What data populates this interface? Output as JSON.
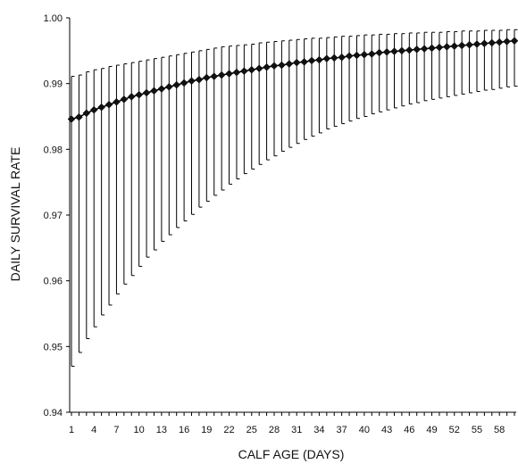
{
  "chart_data": {
    "type": "line",
    "xlabel": "CALF AGE (DAYS)",
    "ylabel": "DAILY SURVIVAL RATE",
    "xlim": [
      1,
      60
    ],
    "ylim": [
      0.94,
      1.0
    ],
    "x_ticks": [
      1,
      4,
      7,
      10,
      13,
      16,
      19,
      22,
      25,
      28,
      31,
      34,
      37,
      40,
      43,
      46,
      49,
      52,
      55,
      58
    ],
    "x_tick_labels": [
      "1",
      "4",
      "7",
      "10",
      "13",
      "16",
      "19",
      "22",
      "25",
      "28",
      "31",
      "34",
      "37",
      "40",
      "43",
      "46",
      "49",
      "52",
      "55",
      "58"
    ],
    "y_ticks": [
      0.94,
      0.95,
      0.96,
      0.97,
      0.98,
      0.99,
      1.0
    ],
    "y_tick_labels": [
      "0.94",
      "0.95",
      "0.96",
      "0.97",
      "0.98",
      "0.99",
      "1.00"
    ],
    "grid": false,
    "marker": "diamond",
    "series": [
      {
        "x": [
          1,
          2,
          3,
          4,
          5,
          6,
          7,
          8,
          9,
          10,
          11,
          12,
          13,
          14,
          15,
          16,
          17,
          18,
          19,
          20,
          21,
          22,
          23,
          24,
          25,
          26,
          27,
          28,
          29,
          30,
          31,
          32,
          33,
          34,
          35,
          36,
          37,
          38,
          39,
          40,
          41,
          42,
          43,
          44,
          45,
          46,
          47,
          48,
          49,
          50,
          51,
          52,
          53,
          54,
          55,
          56,
          57,
          58,
          59,
          60
        ],
        "y": [
          0.9846,
          0.9849,
          0.9855,
          0.986,
          0.9864,
          0.9868,
          0.9872,
          0.9876,
          0.988,
          0.9883,
          0.9886,
          0.9889,
          0.9892,
          0.9895,
          0.9898,
          0.9901,
          0.9904,
          0.9906,
          0.9909,
          0.9911,
          0.9913,
          0.9915,
          0.9917,
          0.9919,
          0.9921,
          0.9923,
          0.9925,
          0.9927,
          0.9928,
          0.993,
          0.9932,
          0.9933,
          0.9935,
          0.9936,
          0.9938,
          0.9939,
          0.994,
          0.9942,
          0.9943,
          0.9944,
          0.9945,
          0.9947,
          0.9948,
          0.9949,
          0.995,
          0.9951,
          0.9952,
          0.9953,
          0.9954,
          0.9955,
          0.9956,
          0.9957,
          0.9958,
          0.9959,
          0.996,
          0.9961,
          0.9962,
          0.9963,
          0.9964,
          0.9965
        ],
        "upper": [
          0.9911,
          0.9913,
          0.9918,
          0.9921,
          0.9923,
          0.9926,
          0.9928,
          0.993,
          0.9932,
          0.9934,
          0.9936,
          0.9938,
          0.994,
          0.9942,
          0.9944,
          0.9946,
          0.9948,
          0.995,
          0.9952,
          0.9954,
          0.9956,
          0.9957,
          0.9958,
          0.9959,
          0.996,
          0.9962,
          0.9963,
          0.9964,
          0.9965,
          0.9966,
          0.9967,
          0.9968,
          0.9969,
          0.9969,
          0.997,
          0.9971,
          0.9972,
          0.9972,
          0.9973,
          0.9974,
          0.9974,
          0.9975,
          0.9975,
          0.9976,
          0.9976,
          0.9977,
          0.9977,
          0.9978,
          0.9978,
          0.9978,
          0.9979,
          0.9979,
          0.998,
          0.998,
          0.998,
          0.9981,
          0.9981,
          0.9981,
          0.9982,
          0.9982
        ],
        "lower": [
          0.947,
          0.9491,
          0.9512,
          0.953,
          0.9548,
          0.9563,
          0.958,
          0.9595,
          0.9608,
          0.9622,
          0.9636,
          0.9647,
          0.966,
          0.967,
          0.9681,
          0.9691,
          0.9701,
          0.9712,
          0.9721,
          0.973,
          0.9738,
          0.9747,
          0.9755,
          0.9763,
          0.977,
          0.9777,
          0.9784,
          0.979,
          0.9797,
          0.9803,
          0.9809,
          0.9815,
          0.982,
          0.9825,
          0.9831,
          0.9835,
          0.9839,
          0.9843,
          0.9847,
          0.985,
          0.9854,
          0.9857,
          0.986,
          0.9863,
          0.9866,
          0.9869,
          0.9871,
          0.9874,
          0.9876,
          0.9878,
          0.988,
          0.9882,
          0.9884,
          0.9886,
          0.9888,
          0.989,
          0.9891,
          0.9893,
          0.9895,
          0.9896
        ]
      }
    ]
  }
}
